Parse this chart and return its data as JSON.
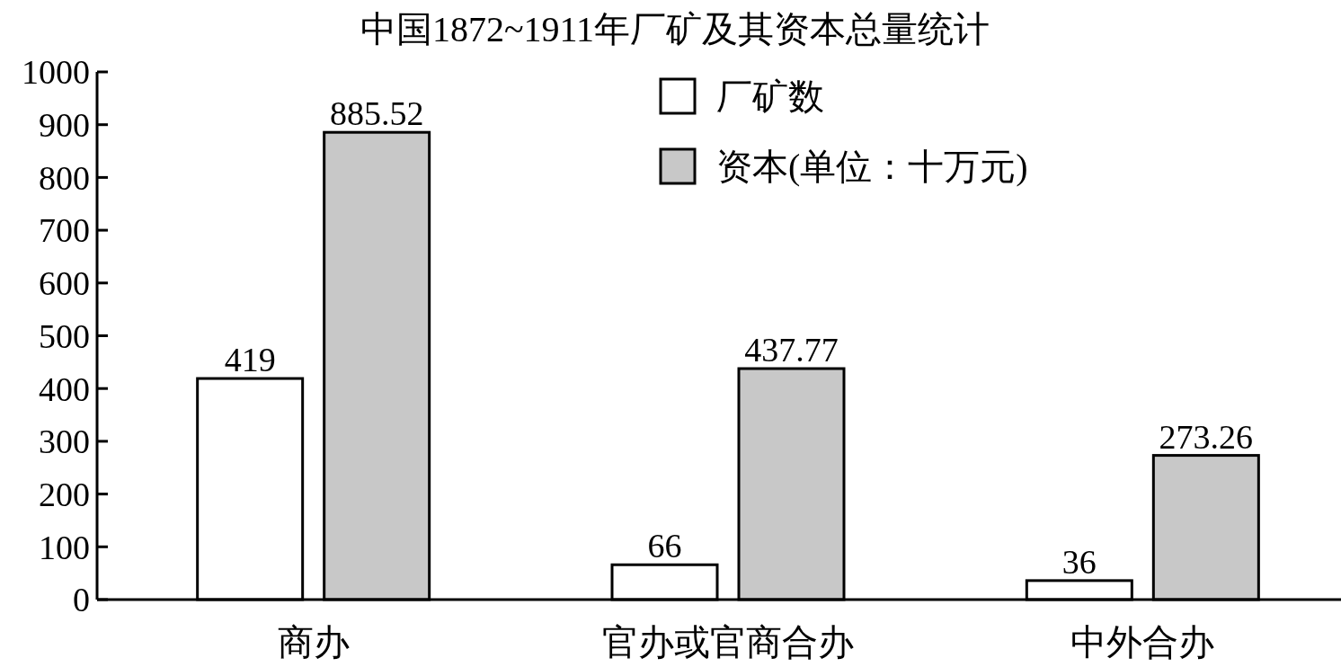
{
  "chart_data": {
    "type": "bar",
    "title": "中国1872~1911年厂矿及其资本总量统计",
    "categories": [
      "商办",
      "官办或官商合办",
      "中外合办"
    ],
    "series": [
      {
        "name": "厂矿数",
        "color": "#ffffff",
        "values": [
          419,
          66,
          36
        ]
      },
      {
        "name": "资本(单位：十万元)",
        "color": "#c8c8c8",
        "values": [
          885.52,
          437.77,
          273.26
        ]
      }
    ],
    "ylim": [
      0,
      1000
    ],
    "yticks": [
      0,
      100,
      200,
      300,
      400,
      500,
      600,
      700,
      800,
      900,
      1000
    ],
    "data_labels": true,
    "legend": "top right",
    "grid": false
  }
}
